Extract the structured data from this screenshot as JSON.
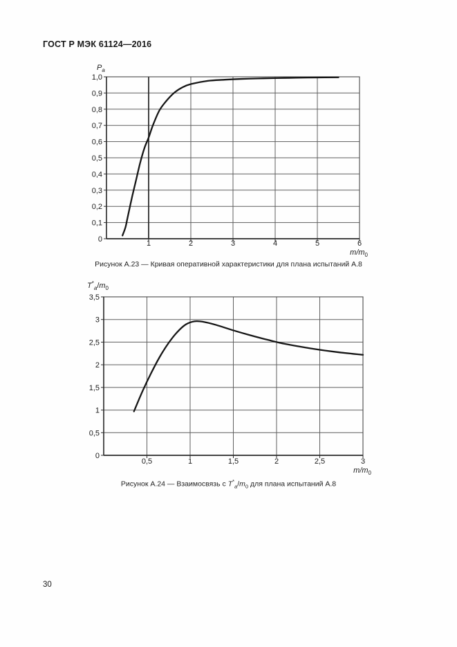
{
  "page": {
    "header_title": "ГОСТ Р МЭК 61124—2016",
    "page_number": "30",
    "background": "#fefefe",
    "text_color": "#1a1a1a"
  },
  "chart_data": [
    {
      "type": "line",
      "title": "Рисунок А.23 — Кривая оперативной характеристики для плана испытаний А.8",
      "ylabel_tokens": [
        {
          "t": "P",
          "italic": true
        },
        {
          "t": "a",
          "sub": true,
          "italic": true
        }
      ],
      "xlabel_tokens": [
        {
          "t": "m/m",
          "italic": true
        },
        {
          "t": "0",
          "sub": true
        }
      ],
      "xlim": [
        0,
        6
      ],
      "ylim": [
        0,
        1.0
      ],
      "grid": true,
      "legend": "none",
      "ref_lines_x": [
        1
      ],
      "x_ticks": [
        {
          "v": 1,
          "label": "1"
        },
        {
          "v": 2,
          "label": "2"
        },
        {
          "v": 3,
          "label": "3"
        },
        {
          "v": 4,
          "label": "4"
        },
        {
          "v": 5,
          "label": "5"
        },
        {
          "v": 6,
          "label": "6"
        }
      ],
      "y_ticks": [
        {
          "v": 0,
          "label": "0"
        },
        {
          "v": 0.1,
          "label": "0,1"
        },
        {
          "v": 0.2,
          "label": "0,2"
        },
        {
          "v": 0.3,
          "label": "0,3"
        },
        {
          "v": 0.4,
          "label": "0,4"
        },
        {
          "v": 0.5,
          "label": "0,5"
        },
        {
          "v": 0.6,
          "label": "0,6"
        },
        {
          "v": 0.7,
          "label": "0,7"
        },
        {
          "v": 0.8,
          "label": "0,8"
        },
        {
          "v": 0.9,
          "label": "0,9"
        },
        {
          "v": 1.0,
          "label": "1,0"
        }
      ],
      "series": [
        {
          "name": "operating-characteristic-curve",
          "x": [
            0.38,
            0.45,
            0.5,
            0.6,
            0.7,
            0.8,
            0.9,
            1.0,
            1.1,
            1.25,
            1.4,
            1.6,
            1.8,
            2.0,
            2.4,
            2.8,
            3.2,
            3.6,
            4.0,
            4.5,
            5.0,
            5.5
          ],
          "y": [
            0.02,
            0.07,
            0.13,
            0.25,
            0.36,
            0.47,
            0.56,
            0.625,
            0.7,
            0.79,
            0.845,
            0.9,
            0.935,
            0.955,
            0.975,
            0.982,
            0.987,
            0.99,
            0.992,
            0.994,
            0.996,
            0.997
          ]
        }
      ],
      "colors": {
        "curve": "#161616",
        "grid": "#5e5e5e",
        "axis": "#2b2b2b",
        "text": "#1a1a1a"
      }
    },
    {
      "type": "line",
      "title": "Рисунок А.24 — Взаимосвязь с Ta*/m0 для плана испытаний А.8",
      "title_tokens": [
        {
          "t": "Рисунок А.24 — Взаимосвязь с "
        },
        {
          "t": "T",
          "italic": true
        },
        {
          "t": "*",
          "sup": true
        },
        {
          "t": "a",
          "sub": true,
          "italic": true
        },
        {
          "t": "/"
        },
        {
          "t": "m",
          "italic": true
        },
        {
          "t": "0",
          "sub": true
        },
        {
          "t": " для плана испытаний А.8"
        }
      ],
      "ylabel_tokens": [
        {
          "t": "T",
          "italic": true
        },
        {
          "t": "*",
          "sup": true
        },
        {
          "t": "a",
          "sub": true,
          "italic": true
        },
        {
          "t": "/"
        },
        {
          "t": "m",
          "italic": true
        },
        {
          "t": "0",
          "sub": true
        }
      ],
      "xlabel_tokens": [
        {
          "t": "m/m",
          "italic": true
        },
        {
          "t": "0",
          "sub": true
        }
      ],
      "xlim": [
        0,
        3
      ],
      "ylim": [
        0,
        3.5
      ],
      "grid": true,
      "legend": "none",
      "ref_lines_x": [],
      "x_ticks": [
        {
          "v": 0.5,
          "label": "0,5"
        },
        {
          "v": 1,
          "label": "1"
        },
        {
          "v": 1.5,
          "label": "1,5"
        },
        {
          "v": 2,
          "label": "2"
        },
        {
          "v": 2.5,
          "label": "2,5"
        },
        {
          "v": 3,
          "label": "3"
        }
      ],
      "y_ticks": [
        {
          "v": 0,
          "label": "0"
        },
        {
          "v": 0.5,
          "label": "0,5"
        },
        {
          "v": 1,
          "label": "1"
        },
        {
          "v": 1.5,
          "label": "1,5"
        },
        {
          "v": 2,
          "label": "2"
        },
        {
          "v": 2.5,
          "label": "2,5"
        },
        {
          "v": 3,
          "label": "3"
        },
        {
          "v": 3.5,
          "label": "3,5"
        }
      ],
      "series": [
        {
          "name": "expected-test-time-curve",
          "x": [
            0.35,
            0.45,
            0.55,
            0.65,
            0.75,
            0.85,
            0.95,
            1.05,
            1.15,
            1.3,
            1.5,
            1.7,
            1.9,
            2.1,
            2.4,
            2.7,
            3.0
          ],
          "y": [
            0.97,
            1.42,
            1.82,
            2.18,
            2.48,
            2.72,
            2.89,
            2.96,
            2.95,
            2.88,
            2.76,
            2.65,
            2.55,
            2.46,
            2.36,
            2.28,
            2.22
          ]
        }
      ],
      "colors": {
        "curve": "#161616",
        "grid": "#5e5e5e",
        "axis": "#2b2b2b",
        "text": "#1a1a1a"
      }
    }
  ]
}
